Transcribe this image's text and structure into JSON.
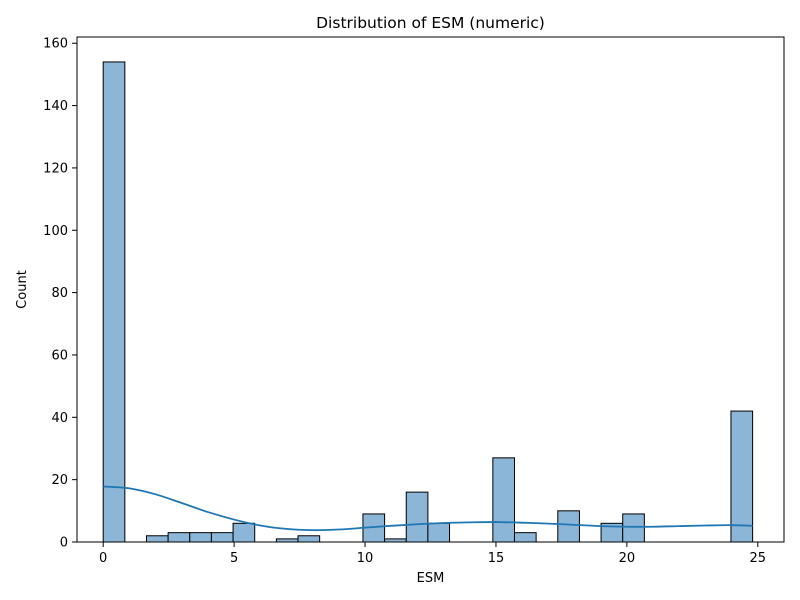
{
  "chart_data": {
    "type": "bar",
    "subtype": "histogram-with-kde",
    "title": "Distribution of ESM (numeric)",
    "xlabel": "ESM",
    "ylabel": "Count",
    "xlim": [
      -1,
      26
    ],
    "ylim": [
      0,
      162
    ],
    "xticks": [
      0,
      5,
      10,
      15,
      20,
      25
    ],
    "yticks": [
      0,
      20,
      40,
      60,
      80,
      100,
      120,
      140,
      160
    ],
    "bin_start": 0,
    "bin_width": 0.8267,
    "counts": [
      154,
      0,
      2,
      3,
      3,
      3,
      6,
      0,
      1,
      2,
      0,
      0,
      9,
      1,
      16,
      6,
      0,
      0,
      27,
      3,
      0,
      10,
      0,
      6,
      9,
      0,
      0,
      0,
      0,
      42
    ],
    "kde": {
      "x": [
        0,
        1,
        2,
        3,
        4,
        5,
        6,
        7,
        8,
        9,
        10,
        11,
        12,
        13,
        14,
        15,
        16,
        17,
        18,
        19,
        20,
        21,
        22,
        23,
        24,
        24.8
      ],
      "y": [
        17.8,
        17.2,
        15.3,
        12.5,
        9.6,
        7.2,
        5.3,
        4.2,
        3.8,
        4.0,
        4.6,
        5.2,
        5.7,
        6.1,
        6.3,
        6.4,
        6.2,
        5.9,
        5.5,
        5.1,
        4.9,
        4.9,
        5.1,
        5.3,
        5.4,
        5.2
      ]
    },
    "colors": {
      "bar_fill": "#8cb6d8",
      "bar_edge": "#000000",
      "kde_line": "#1f77b4"
    },
    "grid": false,
    "legend": "none"
  }
}
